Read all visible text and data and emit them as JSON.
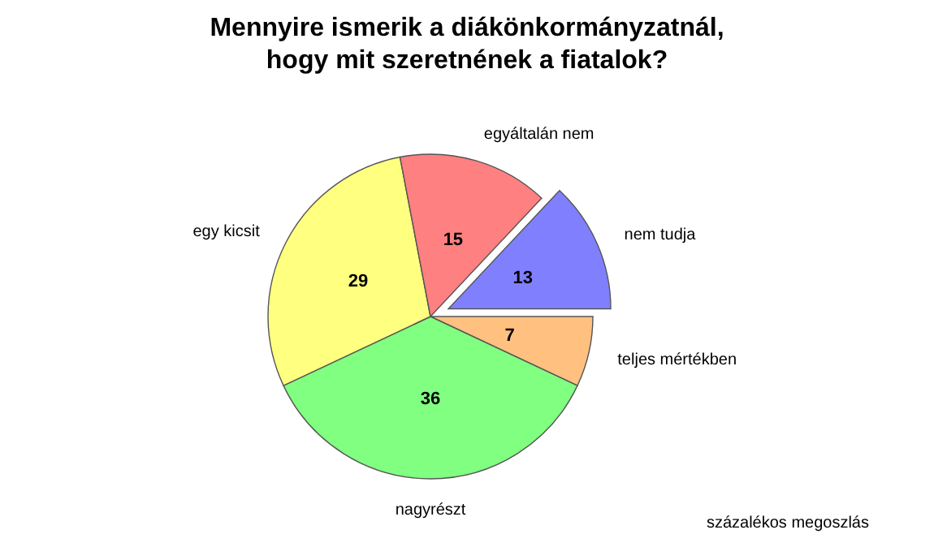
{
  "chart_data": {
    "type": "pie",
    "title": "Mennyire ismerik a diákönkormányzatnál,\nhogy mit szeretnének a fiatalok?",
    "categories": [
      "nem tudja",
      "teljes mértékben",
      "nagyrészt",
      "egy kicsit",
      "egyáltalán nem"
    ],
    "values": [
      13,
      7,
      36,
      29,
      15
    ],
    "colors": [
      "#8080ff",
      "#ffc080",
      "#80ff80",
      "#ffff80",
      "#ff8080"
    ],
    "data_labels": true,
    "annotations": [
      "százalékos megoszlás"
    ]
  }
}
